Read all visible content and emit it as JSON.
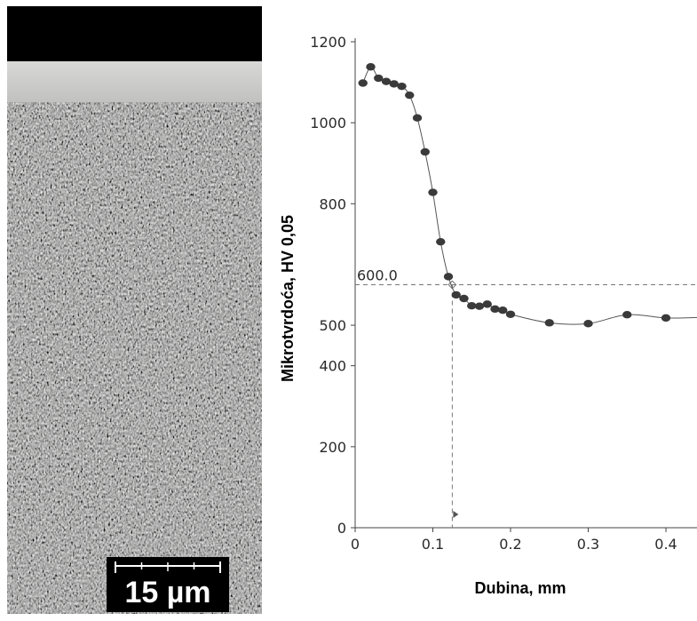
{
  "micrograph": {
    "scale_bar_label": "15 µm"
  },
  "chart_data": {
    "type": "scatter",
    "xlabel": "Dubina, mm",
    "ylabel": "Mikrotvrdoća, HV 0,05",
    "xlim": [
      0,
      0.44
    ],
    "ylim": [
      0,
      1200
    ],
    "yticks": [
      0,
      200,
      400,
      500,
      800,
      1000,
      1200
    ],
    "ytick_labels": [
      "0",
      "200",
      "400",
      "500",
      "800",
      "1000",
      "1200"
    ],
    "xticks": [
      0,
      0.1,
      0.2,
      0.3,
      0.4
    ],
    "xtick_labels": [
      "0",
      "0.1",
      "0.2",
      "0.3",
      "0.4"
    ],
    "grid": false,
    "reference": {
      "label": "600.0",
      "y": 600,
      "x": 0.125
    },
    "series": [
      {
        "x": [
          0.01,
          0.02,
          0.03,
          0.04,
          0.05,
          0.06,
          0.07,
          0.08,
          0.09,
          0.1,
          0.11,
          0.12,
          0.13,
          0.14,
          0.15,
          0.16,
          0.17,
          0.18,
          0.19,
          0.2,
          0.25,
          0.3,
          0.35,
          0.4
        ],
        "y": [
          1098,
          1138,
          1110,
          1102,
          1096,
          1090,
          1068,
          1012,
          928,
          828,
          706,
          620,
          575,
          566,
          548,
          547,
          552,
          540,
          537,
          527,
          506,
          504,
          526,
          518
        ]
      }
    ]
  }
}
